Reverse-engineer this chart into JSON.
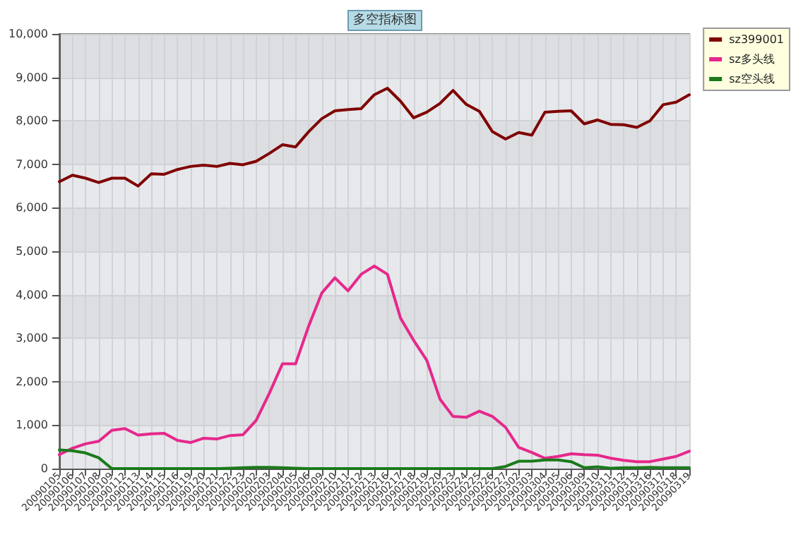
{
  "chart_data": {
    "type": "line",
    "title": "多空指标图",
    "categories": [
      "20090105",
      "20090106",
      "20090107",
      "20090108",
      "20090109",
      "20090112",
      "20090113",
      "20090114",
      "20090115",
      "20090116",
      "20090119",
      "20090120",
      "20090121",
      "20090122",
      "20090123",
      "20090202",
      "20090203",
      "20090204",
      "20090205",
      "20090206",
      "20090209",
      "20090210",
      "20090211",
      "20090212",
      "20090213",
      "20090216",
      "20090217",
      "20090218",
      "20090219",
      "20090220",
      "20090223",
      "20090224",
      "20090225",
      "20090226",
      "20090227",
      "20090302",
      "20090303",
      "20090304",
      "20090305",
      "20090306",
      "20090309",
      "20090310",
      "20090311",
      "20090312",
      "20090313",
      "20090316",
      "20090317",
      "20090318",
      "20090319"
    ],
    "series": [
      {
        "name": "sz399001",
        "color": "#800000",
        "values": [
          6600,
          6750,
          6680,
          6580,
          6680,
          6680,
          6500,
          6780,
          6770,
          6880,
          6950,
          6980,
          6950,
          7020,
          6990,
          7070,
          7250,
          7450,
          7400,
          7750,
          8050,
          8230,
          8260,
          8280,
          8600,
          8750,
          8450,
          8070,
          8200,
          8400,
          8700,
          8380,
          8220,
          7750,
          7580,
          7730,
          7670,
          8200,
          8220,
          8230,
          7930,
          8020,
          7920,
          7910,
          7850,
          8000,
          8370,
          8430,
          8600
        ]
      },
      {
        "name": "sz多头线",
        "color": "#e6288c",
        "values": [
          320,
          470,
          570,
          630,
          880,
          920,
          770,
          800,
          810,
          650,
          600,
          700,
          680,
          760,
          780,
          1110,
          1730,
          2410,
          2410,
          3280,
          4040,
          4390,
          4090,
          4470,
          4660,
          4470,
          3460,
          2950,
          2490,
          1600,
          1200,
          1180,
          1320,
          1200,
          950,
          490,
          370,
          240,
          280,
          340,
          320,
          310,
          240,
          190,
          160,
          160,
          220,
          280,
          400
        ]
      },
      {
        "name": "sz空头线",
        "color": "#1a7a1a",
        "values": [
          430,
          410,
          360,
          250,
          0,
          0,
          0,
          0,
          0,
          0,
          0,
          0,
          0,
          10,
          20,
          30,
          30,
          20,
          10,
          0,
          0,
          0,
          0,
          0,
          0,
          0,
          0,
          0,
          0,
          0,
          0,
          0,
          0,
          0,
          50,
          170,
          170,
          200,
          200,
          160,
          20,
          40,
          10,
          20,
          20,
          30,
          20,
          20,
          20
        ]
      }
    ],
    "ylim": [
      0,
      10000
    ],
    "yticks": [
      0,
      {
        "value": 1000,
        "label": "1,000"
      },
      {
        "value": 2000,
        "label": "2,000"
      },
      {
        "value": 3000,
        "label": "3,000"
      },
      {
        "value": 4000,
        "label": "4,000"
      },
      {
        "value": 5000,
        "label": "5,000"
      },
      {
        "value": 6000,
        "label": "6,000"
      },
      {
        "value": 7000,
        "label": "7,000"
      },
      {
        "value": 8000,
        "label": "8,000"
      },
      {
        "value": 9000,
        "label": "9,000"
      },
      {
        "value": 10000,
        "label": "10,000"
      }
    ],
    "grid": true,
    "legend": "top right",
    "marker": "none",
    "line_style": "solid"
  }
}
